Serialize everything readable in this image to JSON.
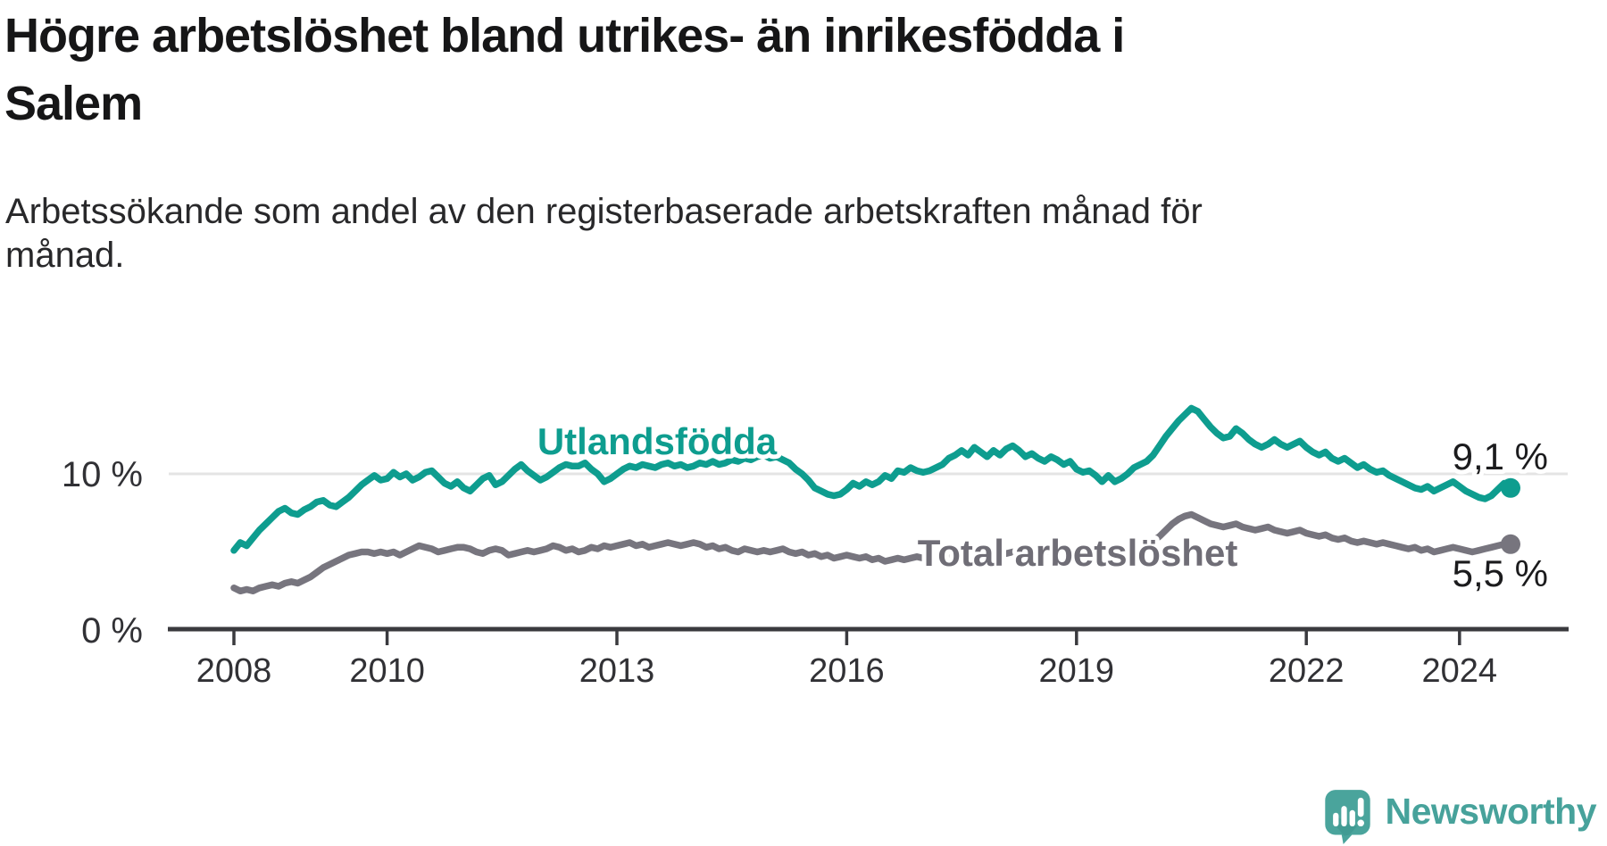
{
  "title": {
    "lines": [
      "Högre arbetslöshet bland utrikes- än inrikesfödda i",
      "Salem"
    ]
  },
  "subtitle": {
    "lines": [
      "Arbetssökande som andel av den registerbaserade arbetskraften månad för",
      "månad."
    ]
  },
  "colors": {
    "foreign_born_line": "#0e9d8f",
    "total_line": "#77757e",
    "total_label": "#6f6d76",
    "axis": "#3a3a3e",
    "gridline": "#e4e4e4",
    "value_label": "#1b1b1d",
    "brand_teal": "#47a29b"
  },
  "chart_data": {
    "type": "line",
    "unit": "%",
    "x_start_year": 2008,
    "months_per_point": 1,
    "x_range": [
      2008.0,
      2024.67
    ],
    "ylim": [
      0,
      15
    ],
    "grid": "horizontal-at-10-only",
    "legend_position": "inline-labels-on-lines",
    "yticks": [
      {
        "value": 0,
        "label": "0 %"
      },
      {
        "value": 10,
        "label": "10 %"
      }
    ],
    "gridline_values": [
      10
    ],
    "xticks": [
      {
        "year": 2008,
        "label": "2008"
      },
      {
        "year": 2010,
        "label": "2010"
      },
      {
        "year": 2013,
        "label": "2013"
      },
      {
        "year": 2016,
        "label": "2016"
      },
      {
        "year": 2019,
        "label": "2019"
      },
      {
        "year": 2022,
        "label": "2022"
      },
      {
        "year": 2024,
        "label": "2024"
      }
    ],
    "series": [
      {
        "name": "Utlandsfödda",
        "color": "#0e9d8f",
        "label_color": "#0e9d8f",
        "end_value": 9.1,
        "end_label": "9,1 %",
        "values": [
          5.1,
          5.6,
          5.4,
          5.9,
          6.4,
          6.8,
          7.2,
          7.6,
          7.8,
          7.5,
          7.4,
          7.7,
          7.9,
          8.2,
          8.3,
          8.0,
          7.9,
          8.2,
          8.5,
          8.9,
          9.3,
          9.6,
          9.9,
          9.6,
          9.7,
          10.1,
          9.8,
          10.0,
          9.6,
          9.8,
          10.1,
          10.2,
          9.8,
          9.4,
          9.2,
          9.5,
          9.1,
          8.9,
          9.3,
          9.7,
          9.9,
          9.3,
          9.5,
          9.9,
          10.3,
          10.6,
          10.2,
          9.9,
          9.6,
          9.8,
          10.1,
          10.4,
          10.6,
          10.5,
          10.5,
          10.7,
          10.3,
          10.0,
          9.5,
          9.7,
          10.0,
          10.3,
          10.5,
          10.4,
          10.6,
          10.5,
          10.4,
          10.6,
          10.7,
          10.5,
          10.6,
          10.4,
          10.5,
          10.7,
          10.6,
          10.8,
          10.6,
          10.7,
          10.9,
          10.8,
          11.0,
          10.9,
          11.1,
          11.2,
          11.0,
          11.1,
          10.9,
          10.7,
          10.3,
          10.0,
          9.6,
          9.1,
          8.9,
          8.7,
          8.6,
          8.7,
          9.0,
          9.4,
          9.2,
          9.5,
          9.3,
          9.5,
          9.9,
          9.7,
          10.2,
          10.1,
          10.4,
          10.2,
          10.1,
          10.2,
          10.4,
          10.6,
          11.0,
          11.2,
          11.5,
          11.2,
          11.7,
          11.4,
          11.1,
          11.5,
          11.2,
          11.6,
          11.8,
          11.5,
          11.1,
          11.3,
          11.0,
          10.8,
          11.1,
          10.9,
          10.6,
          10.8,
          10.3,
          10.1,
          10.2,
          9.9,
          9.5,
          9.9,
          9.5,
          9.7,
          10.0,
          10.4,
          10.6,
          10.8,
          11.2,
          11.8,
          12.4,
          12.9,
          13.4,
          13.8,
          14.2,
          14.0,
          13.5,
          13.0,
          12.6,
          12.3,
          12.4,
          12.9,
          12.6,
          12.2,
          11.9,
          11.7,
          11.9,
          12.2,
          11.9,
          11.7,
          11.9,
          12.1,
          11.7,
          11.4,
          11.2,
          11.4,
          11.0,
          10.8,
          11.0,
          10.7,
          10.4,
          10.6,
          10.3,
          10.1,
          10.2,
          9.9,
          9.7,
          9.5,
          9.3,
          9.1,
          9.0,
          9.2,
          8.9,
          9.1,
          9.3,
          9.5,
          9.2,
          8.9,
          8.7,
          8.5,
          8.4,
          8.6,
          9.0,
          9.4,
          9.1
        ]
      },
      {
        "name": "Total arbetslöshet",
        "color": "#77757e",
        "label_color": "#6f6d76",
        "end_value": 5.5,
        "end_label": "5,5 %",
        "values": [
          2.7,
          2.5,
          2.6,
          2.5,
          2.7,
          2.8,
          2.9,
          2.8,
          3.0,
          3.1,
          3.0,
          3.2,
          3.4,
          3.7,
          4.0,
          4.2,
          4.4,
          4.6,
          4.8,
          4.9,
          5.0,
          5.0,
          4.9,
          5.0,
          4.9,
          5.0,
          4.8,
          5.0,
          5.2,
          5.4,
          5.3,
          5.2,
          5.0,
          5.1,
          5.2,
          5.3,
          5.3,
          5.2,
          5.0,
          4.9,
          5.1,
          5.2,
          5.1,
          4.8,
          4.9,
          5.0,
          5.1,
          5.0,
          5.1,
          5.2,
          5.4,
          5.3,
          5.1,
          5.2,
          5.0,
          5.1,
          5.3,
          5.2,
          5.4,
          5.3,
          5.4,
          5.5,
          5.6,
          5.4,
          5.5,
          5.3,
          5.4,
          5.5,
          5.6,
          5.5,
          5.4,
          5.5,
          5.6,
          5.5,
          5.3,
          5.4,
          5.2,
          5.3,
          5.1,
          5.0,
          5.2,
          5.1,
          5.0,
          5.1,
          5.0,
          5.1,
          5.2,
          5.0,
          4.9,
          5.0,
          4.8,
          4.9,
          4.7,
          4.8,
          4.6,
          4.7,
          4.8,
          4.7,
          4.6,
          4.7,
          4.5,
          4.6,
          4.4,
          4.5,
          4.6,
          4.5,
          4.6,
          4.7,
          4.6,
          4.7,
          4.8,
          4.7,
          4.8,
          4.9,
          4.8,
          4.7,
          4.8,
          4.9,
          5.0,
          4.9,
          5.0,
          4.9,
          5.0,
          5.1,
          5.0,
          4.9,
          5.0,
          5.1,
          5.0,
          5.1,
          5.2,
          5.1,
          5.0,
          4.9,
          5.0,
          5.1,
          5.0,
          5.1,
          5.2,
          5.3,
          5.2,
          5.3,
          5.4,
          5.5,
          5.7,
          6.0,
          6.4,
          6.8,
          7.1,
          7.3,
          7.4,
          7.2,
          7.0,
          6.8,
          6.7,
          6.6,
          6.7,
          6.8,
          6.6,
          6.5,
          6.4,
          6.5,
          6.6,
          6.4,
          6.3,
          6.2,
          6.3,
          6.4,
          6.2,
          6.1,
          6.0,
          6.1,
          5.9,
          5.8,
          5.9,
          5.7,
          5.6,
          5.7,
          5.6,
          5.5,
          5.6,
          5.5,
          5.4,
          5.3,
          5.2,
          5.3,
          5.1,
          5.2,
          5.0,
          5.1,
          5.2,
          5.3,
          5.2,
          5.1,
          5.0,
          5.1,
          5.2,
          5.3,
          5.4,
          5.5,
          5.5
        ]
      }
    ]
  },
  "branding": {
    "logo_text": "Newsworthy",
    "logo_icon": "newsworthy-speech-bubble-chart-icon"
  }
}
